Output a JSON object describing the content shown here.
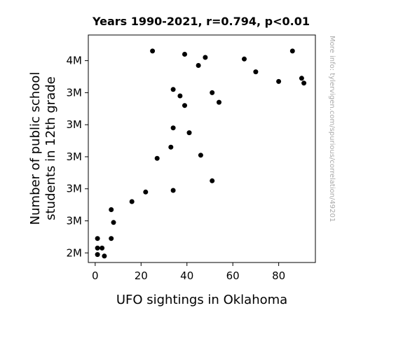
{
  "chart_data": {
    "type": "scatter",
    "title": "Years 1990-2021, r=0.794, p<0.01",
    "xlabel": "UFO sightings in Oklahoma",
    "ylabel_lines": [
      "Number of public school",
      "students in 12th grade"
    ],
    "xlim": [
      -3,
      96
    ],
    "ylim": [
      2.44,
      3.86
    ],
    "x_ticks": [
      0,
      20,
      40,
      60,
      80
    ],
    "y_ticks": [
      {
        "value": 2.5,
        "label": "2M"
      },
      {
        "value": 2.7,
        "label": "3M"
      },
      {
        "value": 2.9,
        "label": "3M"
      },
      {
        "value": 3.1,
        "label": "3M"
      },
      {
        "value": 3.3,
        "label": "3M"
      },
      {
        "value": 3.5,
        "label": "3M"
      },
      {
        "value": 3.7,
        "label": "4M"
      }
    ],
    "grid": false,
    "point_color": "#000000",
    "points": [
      {
        "x": 1,
        "y": 2.59
      },
      {
        "x": 1,
        "y": 2.53
      },
      {
        "x": 1,
        "y": 2.49
      },
      {
        "x": 3,
        "y": 2.53
      },
      {
        "x": 4,
        "y": 2.48
      },
      {
        "x": 7,
        "y": 2.59
      },
      {
        "x": 7,
        "y": 2.77
      },
      {
        "x": 8,
        "y": 2.69
      },
      {
        "x": 16,
        "y": 2.82
      },
      {
        "x": 22,
        "y": 2.88
      },
      {
        "x": 25,
        "y": 3.76
      },
      {
        "x": 27,
        "y": 3.09
      },
      {
        "x": 33,
        "y": 3.16
      },
      {
        "x": 34,
        "y": 2.89
      },
      {
        "x": 34,
        "y": 3.28
      },
      {
        "x": 34,
        "y": 3.52
      },
      {
        "x": 37,
        "y": 3.48
      },
      {
        "x": 39,
        "y": 3.74
      },
      {
        "x": 39,
        "y": 3.42
      },
      {
        "x": 41,
        "y": 3.25
      },
      {
        "x": 45,
        "y": 3.67
      },
      {
        "x": 46,
        "y": 3.11
      },
      {
        "x": 48,
        "y": 3.72
      },
      {
        "x": 51,
        "y": 3.5
      },
      {
        "x": 51,
        "y": 2.95
      },
      {
        "x": 54,
        "y": 3.44
      },
      {
        "x": 65,
        "y": 3.71
      },
      {
        "x": 70,
        "y": 3.63
      },
      {
        "x": 80,
        "y": 3.57
      },
      {
        "x": 86,
        "y": 3.76
      },
      {
        "x": 90,
        "y": 3.59
      },
      {
        "x": 91,
        "y": 3.56
      }
    ]
  },
  "watermark": "More info: tylervigen.com/spurious/correlation/49201"
}
